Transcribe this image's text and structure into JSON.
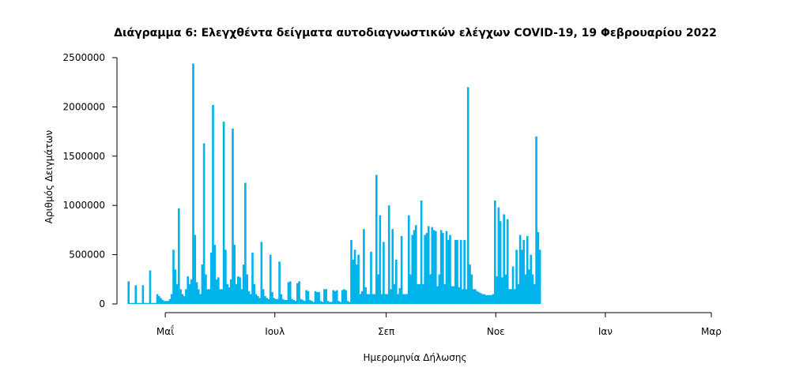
{
  "chart_data": {
    "type": "bar",
    "title": "Διάγραμμα 6: Ελεγχθέντα δείγματα αυτοδιαγνωστικών ελέγχων COVID-19, 19 Φεβρουαρίου 2022",
    "xlabel": "Ημερομηνία Δήλωσης",
    "ylabel": "Αριθμός Δειγμάτων",
    "ylim": [
      0,
      2500000
    ],
    "y_ticks": [
      0,
      500000,
      1000000,
      1500000,
      2000000,
      2500000
    ],
    "x_ticks": [
      {
        "label": "Μαΐ",
        "value": "2021-05-01"
      },
      {
        "label": "Ιουλ",
        "value": "2021-07-01"
      },
      {
        "label": "Σεπ",
        "value": "2021-09-01"
      },
      {
        "label": "Νοε",
        "value": "2021-11-01"
      },
      {
        "label": "Ιαν",
        "value": "2022-01-01"
      },
      {
        "label": "Μαρ",
        "value": "2022-03-01"
      }
    ],
    "x_range": [
      "2021-04-05",
      "2022-03-01"
    ],
    "start_date": "2021-04-10",
    "values": [
      230000,
      10000,
      10000,
      10000,
      190000,
      10000,
      10000,
      10000,
      190000,
      10000,
      10000,
      10000,
      340000,
      10000,
      10000,
      10000,
      100000,
      80000,
      60000,
      40000,
      30000,
      30000,
      30000,
      50000,
      100000,
      550000,
      350000,
      200000,
      970000,
      150000,
      100000,
      80000,
      150000,
      280000,
      200000,
      250000,
      2440000,
      700000,
      220000,
      150000,
      100000,
      400000,
      1630000,
      300000,
      150000,
      150000,
      520000,
      2020000,
      600000,
      250000,
      270000,
      150000,
      150000,
      1850000,
      550000,
      200000,
      170000,
      250000,
      1780000,
      600000,
      200000,
      280000,
      270000,
      150000,
      400000,
      1230000,
      300000,
      130000,
      100000,
      520000,
      200000,
      100000,
      80000,
      60000,
      630000,
      150000,
      80000,
      60000,
      50000,
      500000,
      120000,
      60000,
      50000,
      50000,
      430000,
      100000,
      50000,
      40000,
      40000,
      220000,
      230000,
      50000,
      40000,
      30000,
      210000,
      230000,
      50000,
      40000,
      30000,
      140000,
      130000,
      40000,
      30000,
      20000,
      130000,
      120000,
      120000,
      30000,
      20000,
      150000,
      150000,
      30000,
      20000,
      20000,
      140000,
      130000,
      140000,
      30000,
      20000,
      140000,
      150000,
      140000,
      30000,
      20000,
      650000,
      450000,
      550000,
      400000,
      500000,
      100000,
      130000,
      760000,
      170000,
      100000,
      100000,
      530000,
      100000,
      100000,
      1310000,
      300000,
      900000,
      100000,
      630000,
      100000,
      100000,
      1000000,
      150000,
      760000,
      200000,
      450000,
      100000,
      160000,
      690000,
      100000,
      100000,
      100000,
      900000,
      300000,
      700000,
      750000,
      800000,
      200000,
      200000,
      1050000,
      200000,
      700000,
      720000,
      790000,
      300000,
      780000,
      750000,
      740000,
      180000,
      300000,
      750000,
      720000,
      200000,
      740000,
      650000,
      700000,
      180000,
      180000,
      650000,
      650000,
      170000,
      650000,
      150000,
      650000,
      150000,
      2200000,
      400000,
      300000,
      150000,
      150000,
      130000,
      120000,
      110000,
      100000,
      100000,
      90000,
      90000,
      90000,
      90000,
      100000,
      1050000,
      280000,
      980000,
      840000,
      270000,
      910000,
      300000,
      860000,
      150000,
      150000,
      380000,
      150000,
      550000,
      200000,
      700000,
      550000,
      650000,
      300000,
      690000,
      350000,
      500000,
      300000,
      200000,
      1700000,
      730000,
      550000
    ]
  }
}
